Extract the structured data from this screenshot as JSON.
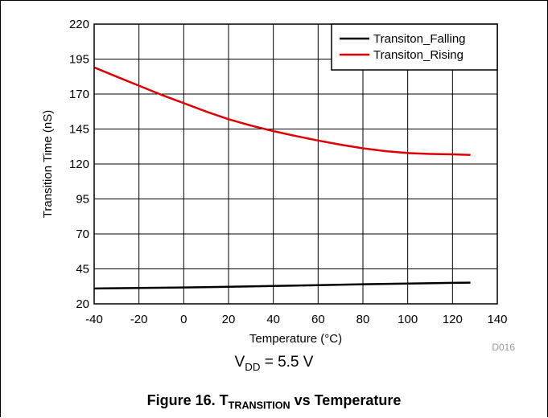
{
  "chart_data": {
    "type": "line",
    "xlabel": "Temperature (°C)",
    "ylabel": "Transition Time (nS)",
    "xlim": [
      -40,
      140
    ],
    "ylim": [
      20,
      220
    ],
    "xticks": [
      "-40",
      "-20",
      "0",
      "20",
      "40",
      "60",
      "80",
      "100",
      "120",
      "140"
    ],
    "yticks": [
      "20",
      "45",
      "70",
      "95",
      "120",
      "145",
      "170",
      "195",
      "220"
    ],
    "grid": true,
    "legend_position": "top-right",
    "series": [
      {
        "name": "Transiton_Falling",
        "color": "#000000",
        "x": [
          -40,
          -20,
          0,
          20,
          40,
          60,
          80,
          100,
          120,
          128
        ],
        "y": [
          31.0,
          31.3,
          31.7,
          32.2,
          32.8,
          33.4,
          34.0,
          34.5,
          35.0,
          35.2
        ]
      },
      {
        "name": "Transiton_Rising",
        "color": "#e00000",
        "x": [
          -40,
          -30,
          -20,
          -10,
          0,
          10,
          20,
          30,
          40,
          50,
          60,
          70,
          80,
          90,
          100,
          110,
          120,
          128
        ],
        "y": [
          189,
          182.5,
          176,
          169.5,
          163.5,
          157.5,
          152,
          147.5,
          143.5,
          140,
          136.8,
          133.8,
          131.2,
          129.2,
          127.8,
          127.2,
          126.9,
          126.5
        ]
      }
    ],
    "code_label": "D016"
  },
  "condition": {
    "prefix": "V",
    "sub": "DD",
    "suffix": " = 5.5 V"
  },
  "caption": {
    "prefix": "Figure 16. T",
    "sub": "TRANSITION",
    "suffix": " vs Temperature"
  }
}
